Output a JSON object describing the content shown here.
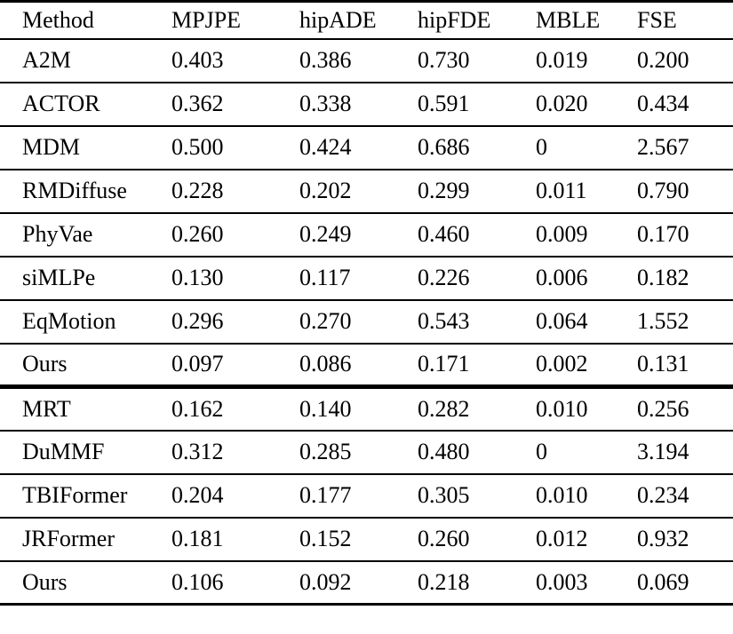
{
  "table": {
    "columns": [
      "Method",
      "MPJPE",
      "hipADE",
      "hipFDE",
      "MBLE",
      "FSE"
    ],
    "sections": [
      {
        "rows": [
          [
            "A2M",
            "0.403",
            "0.386",
            "0.730",
            "0.019",
            "0.200"
          ],
          [
            "ACTOR",
            "0.362",
            "0.338",
            "0.591",
            "0.020",
            "0.434"
          ],
          [
            "MDM",
            "0.500",
            "0.424",
            "0.686",
            "0",
            "2.567"
          ],
          [
            "RMDiffuse",
            "0.228",
            "0.202",
            "0.299",
            "0.011",
            "0.790"
          ],
          [
            "PhyVae",
            "0.260",
            "0.249",
            "0.460",
            "0.009",
            "0.170"
          ],
          [
            "siMLPe",
            "0.130",
            "0.117",
            "0.226",
            "0.006",
            "0.182"
          ],
          [
            "EqMotion",
            "0.296",
            "0.270",
            "0.543",
            "0.064",
            "1.552"
          ],
          [
            "Ours",
            "0.097",
            "0.086",
            "0.171",
            "0.002",
            "0.131"
          ]
        ]
      },
      {
        "rows": [
          [
            "MRT",
            "0.162",
            "0.140",
            "0.282",
            "0.010",
            "0.256"
          ],
          [
            "DuMMF",
            "0.312",
            "0.285",
            "0.480",
            "0",
            "3.194"
          ],
          [
            "TBIFormer",
            "0.204",
            "0.177",
            "0.305",
            "0.010",
            "0.234"
          ],
          [
            "JRFormer",
            "0.181",
            "0.152",
            "0.260",
            "0.012",
            "0.932"
          ],
          [
            "Ours",
            "0.106",
            "0.092",
            "0.218",
            "0.003",
            "0.069"
          ]
        ]
      }
    ]
  },
  "colors": {
    "background": "#ffffff",
    "text": "#000000",
    "rule": "#000000"
  }
}
